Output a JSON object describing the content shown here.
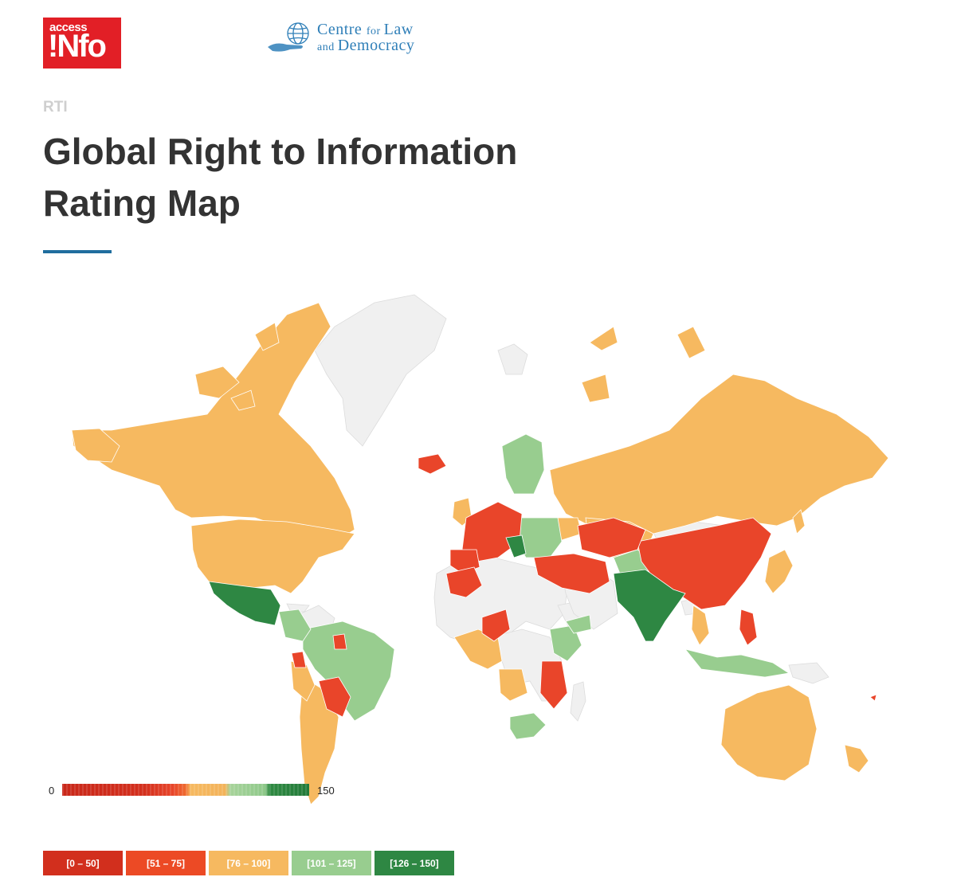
{
  "header": {
    "access_info_logo": {
      "small_text": "access",
      "big_text": "!Nfo",
      "color": "#e21f26"
    },
    "cld_logo": {
      "line1_a": "Centre ",
      "line1_b": "for ",
      "line1_c": "Law",
      "line2_a": "and ",
      "line2_b": "Democracy",
      "color": "#2f7fb8"
    }
  },
  "kicker": "RTI",
  "title": "Global Right to Information Rating Map",
  "accent_color": "#1f6d9e",
  "map": {
    "colors": {
      "no_data": "#f0f0f0",
      "range_0_50": "#d22f1d",
      "range_51_75": "#e9452a",
      "range_76_100": "#f6b960",
      "range_101_125": "#98cd8f",
      "range_126_150": "#2e8743"
    }
  },
  "scale": {
    "min": "0",
    "max": "150"
  },
  "legend": [
    {
      "label": "[0 – 50]",
      "color": "#d22f1d"
    },
    {
      "label": "[51 – 75]",
      "color": "#ec4a25"
    },
    {
      "label": "[76 – 100]",
      "color": "#f6b960"
    },
    {
      "label": "[101 – 125]",
      "color": "#98cd8f"
    },
    {
      "label": "[126 – 150]",
      "color": "#2e8743"
    }
  ]
}
